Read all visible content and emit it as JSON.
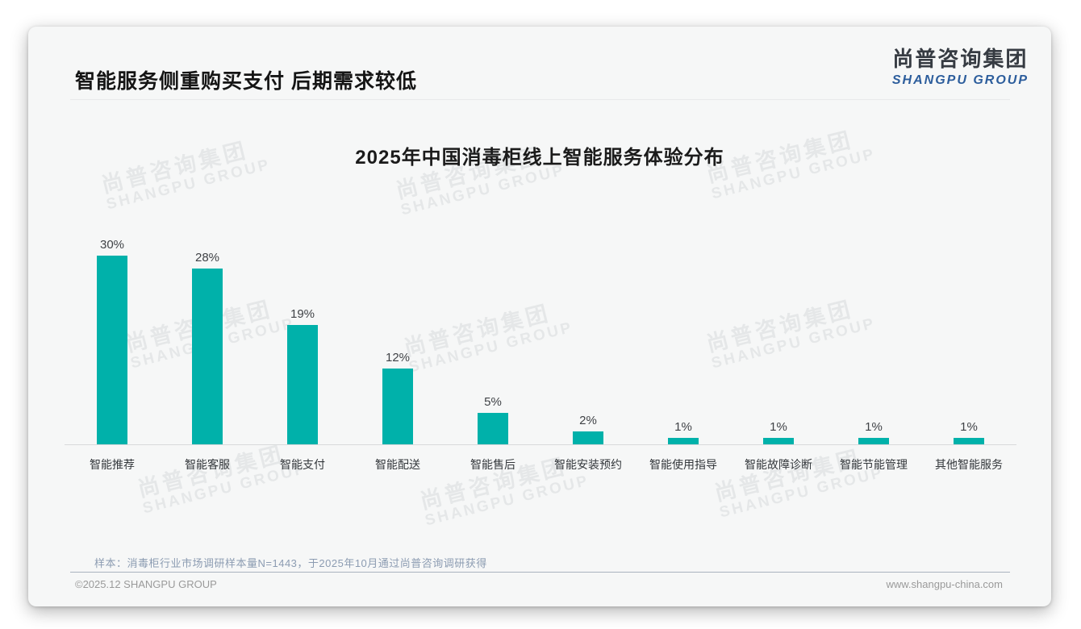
{
  "page": {
    "title": "智能服务侧重购买支付 后期需求较低",
    "logo": {
      "cn": "尚普咨询集团",
      "en": "SHANGPU GROUP"
    },
    "watermark": {
      "line1": "尚普咨询集团",
      "line2": "SHANGPU GROUP"
    },
    "footer": {
      "note": "样本：消毒柜行业市场调研样本量N=1443，于2025年10月通过尚普咨询调研获得",
      "copyright": "©2025.12 SHANGPU GROUP",
      "website": "www.shangpu-china.com"
    }
  },
  "chart_data": {
    "type": "bar",
    "title": "2025年中国消毒柜线上智能服务体验分布",
    "categories": [
      "智能推荐",
      "智能客服",
      "智能支付",
      "智能配送",
      "智能售后",
      "智能安装预约",
      "智能使用指导",
      "智能故障诊断",
      "智能节能管理",
      "其他智能服务"
    ],
    "values": [
      30,
      28,
      19,
      12,
      5,
      2,
      1,
      1,
      1,
      1
    ],
    "unit": "%",
    "bar_color": "#00b1aa",
    "label_color": "#3f4246",
    "ylim": [
      0,
      32
    ],
    "grid": false,
    "legend": "none",
    "data_labels_shown": true
  }
}
